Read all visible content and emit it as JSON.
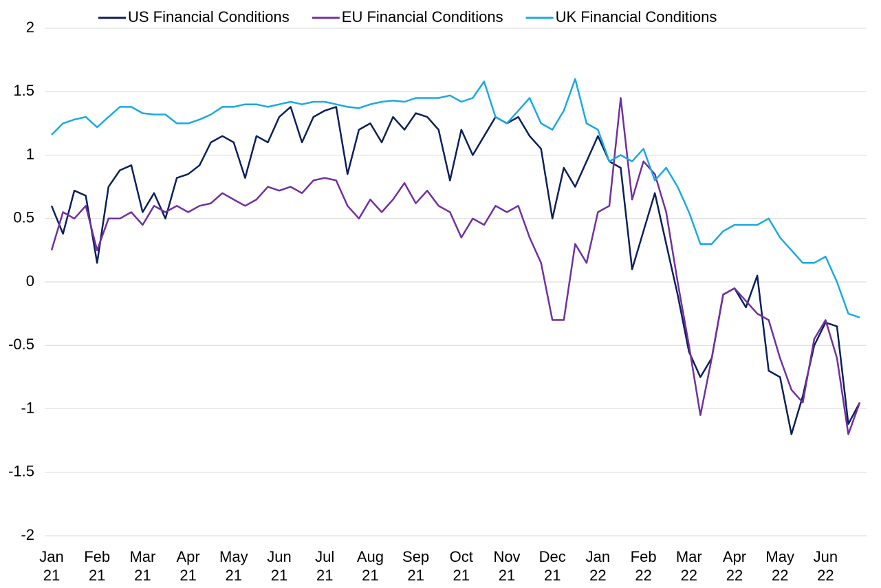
{
  "chart_data": {
    "type": "line",
    "x": [
      0,
      0.25,
      0.5,
      0.75,
      1,
      1.25,
      1.5,
      1.75,
      2,
      2.25,
      2.5,
      2.75,
      3,
      3.25,
      3.5,
      3.75,
      4,
      4.25,
      4.5,
      4.75,
      5,
      5.25,
      5.5,
      5.75,
      6,
      6.25,
      6.5,
      6.75,
      7,
      7.25,
      7.5,
      7.75,
      8,
      8.25,
      8.5,
      8.75,
      9,
      9.25,
      9.5,
      9.75,
      10,
      10.25,
      10.5,
      10.75,
      11,
      11.25,
      11.5,
      11.75,
      12,
      12.25,
      12.5,
      12.75,
      13,
      13.25,
      13.5,
      13.75,
      14,
      14.25,
      14.5,
      14.75,
      15,
      15.25,
      15.5,
      15.75,
      16,
      16.25,
      16.5,
      16.75,
      17,
      17.25,
      17.5,
      17.75
    ],
    "xlim": [
      0,
      17.9
    ],
    "xticks": [
      {
        "value": 0,
        "label": "Jan 21"
      },
      {
        "value": 1,
        "label": "Feb 21"
      },
      {
        "value": 2,
        "label": "Mar 21"
      },
      {
        "value": 3,
        "label": "Apr 21"
      },
      {
        "value": 4,
        "label": "May 21"
      },
      {
        "value": 5,
        "label": "Jun 21"
      },
      {
        "value": 6,
        "label": "Jul 21"
      },
      {
        "value": 7,
        "label": "Aug 21"
      },
      {
        "value": 8,
        "label": "Sep 21"
      },
      {
        "value": 9,
        "label": "Oct 21"
      },
      {
        "value": 10,
        "label": "Nov 21"
      },
      {
        "value": 11,
        "label": "Dec 21"
      },
      {
        "value": 12,
        "label": "Jan 22"
      },
      {
        "value": 13,
        "label": "Feb 22"
      },
      {
        "value": 14,
        "label": "Mar 22"
      },
      {
        "value": 15,
        "label": "Apr 22"
      },
      {
        "value": 16,
        "label": "May 22"
      },
      {
        "value": 17,
        "label": "Jun 22"
      }
    ],
    "ylim": [
      -2,
      2
    ],
    "yticks": [
      -2,
      -1.5,
      -1,
      -0.5,
      0,
      0.5,
      1,
      1.5,
      2
    ],
    "grid": true,
    "legend": "top",
    "series": [
      {
        "name": "US Financial Conditions",
        "color": "#0b1f5c",
        "values": [
          0.6,
          0.38,
          0.72,
          0.68,
          0.15,
          0.75,
          0.88,
          0.92,
          0.55,
          0.7,
          0.5,
          0.82,
          0.85,
          0.92,
          1.1,
          1.15,
          1.1,
          0.82,
          1.15,
          1.1,
          1.3,
          1.38,
          1.1,
          1.3,
          1.35,
          1.38,
          0.85,
          1.2,
          1.25,
          1.1,
          1.3,
          1.2,
          1.33,
          1.3,
          1.2,
          0.8,
          1.2,
          1.0,
          1.15,
          1.3,
          1.25,
          1.3,
          1.15,
          1.05,
          0.5,
          0.9,
          0.75,
          0.95,
          1.15,
          0.95,
          0.9,
          0.1,
          0.4,
          0.7,
          0.3,
          -0.1,
          -0.55,
          -0.75,
          -0.6,
          -0.1,
          -0.05,
          -0.2,
          0.05,
          -0.7,
          -0.75,
          -1.2,
          -0.9,
          -0.5,
          -0.32,
          -0.35,
          -1.12,
          -0.95
        ]
      },
      {
        "name": "EU Financial Conditions",
        "color": "#7030a0",
        "values": [
          0.25,
          0.55,
          0.5,
          0.6,
          0.25,
          0.5,
          0.5,
          0.55,
          0.45,
          0.6,
          0.55,
          0.6,
          0.55,
          0.6,
          0.62,
          0.7,
          0.65,
          0.6,
          0.65,
          0.75,
          0.72,
          0.75,
          0.7,
          0.8,
          0.82,
          0.8,
          0.6,
          0.5,
          0.65,
          0.55,
          0.65,
          0.78,
          0.62,
          0.72,
          0.6,
          0.55,
          0.35,
          0.5,
          0.45,
          0.6,
          0.55,
          0.6,
          0.35,
          0.15,
          -0.3,
          -0.3,
          0.3,
          0.15,
          0.55,
          0.6,
          1.45,
          0.65,
          0.95,
          0.85,
          0.55,
          0.0,
          -0.5,
          -1.05,
          -0.6,
          -0.1,
          -0.05,
          -0.15,
          -0.25,
          -0.3,
          -0.6,
          -0.85,
          -0.95,
          -0.45,
          -0.3,
          -0.6,
          -1.2,
          -0.95
        ]
      },
      {
        "name": "UK Financial Conditions",
        "color": "#1aa9e1",
        "values": [
          1.16,
          1.25,
          1.28,
          1.3,
          1.22,
          1.3,
          1.38,
          1.38,
          1.33,
          1.32,
          1.32,
          1.25,
          1.25,
          1.28,
          1.32,
          1.38,
          1.38,
          1.4,
          1.4,
          1.38,
          1.4,
          1.42,
          1.4,
          1.42,
          1.42,
          1.4,
          1.38,
          1.37,
          1.4,
          1.42,
          1.43,
          1.42,
          1.45,
          1.45,
          1.45,
          1.47,
          1.42,
          1.45,
          1.58,
          1.3,
          1.25,
          1.35,
          1.45,
          1.25,
          1.2,
          1.35,
          1.6,
          1.25,
          1.2,
          0.95,
          1.0,
          0.95,
          1.05,
          0.8,
          0.9,
          0.75,
          0.55,
          0.3,
          0.3,
          0.4,
          0.45,
          0.45,
          0.45,
          0.5,
          0.35,
          0.25,
          0.15,
          0.15,
          0.2,
          0.0,
          -0.25,
          -0.28
        ]
      }
    ]
  }
}
